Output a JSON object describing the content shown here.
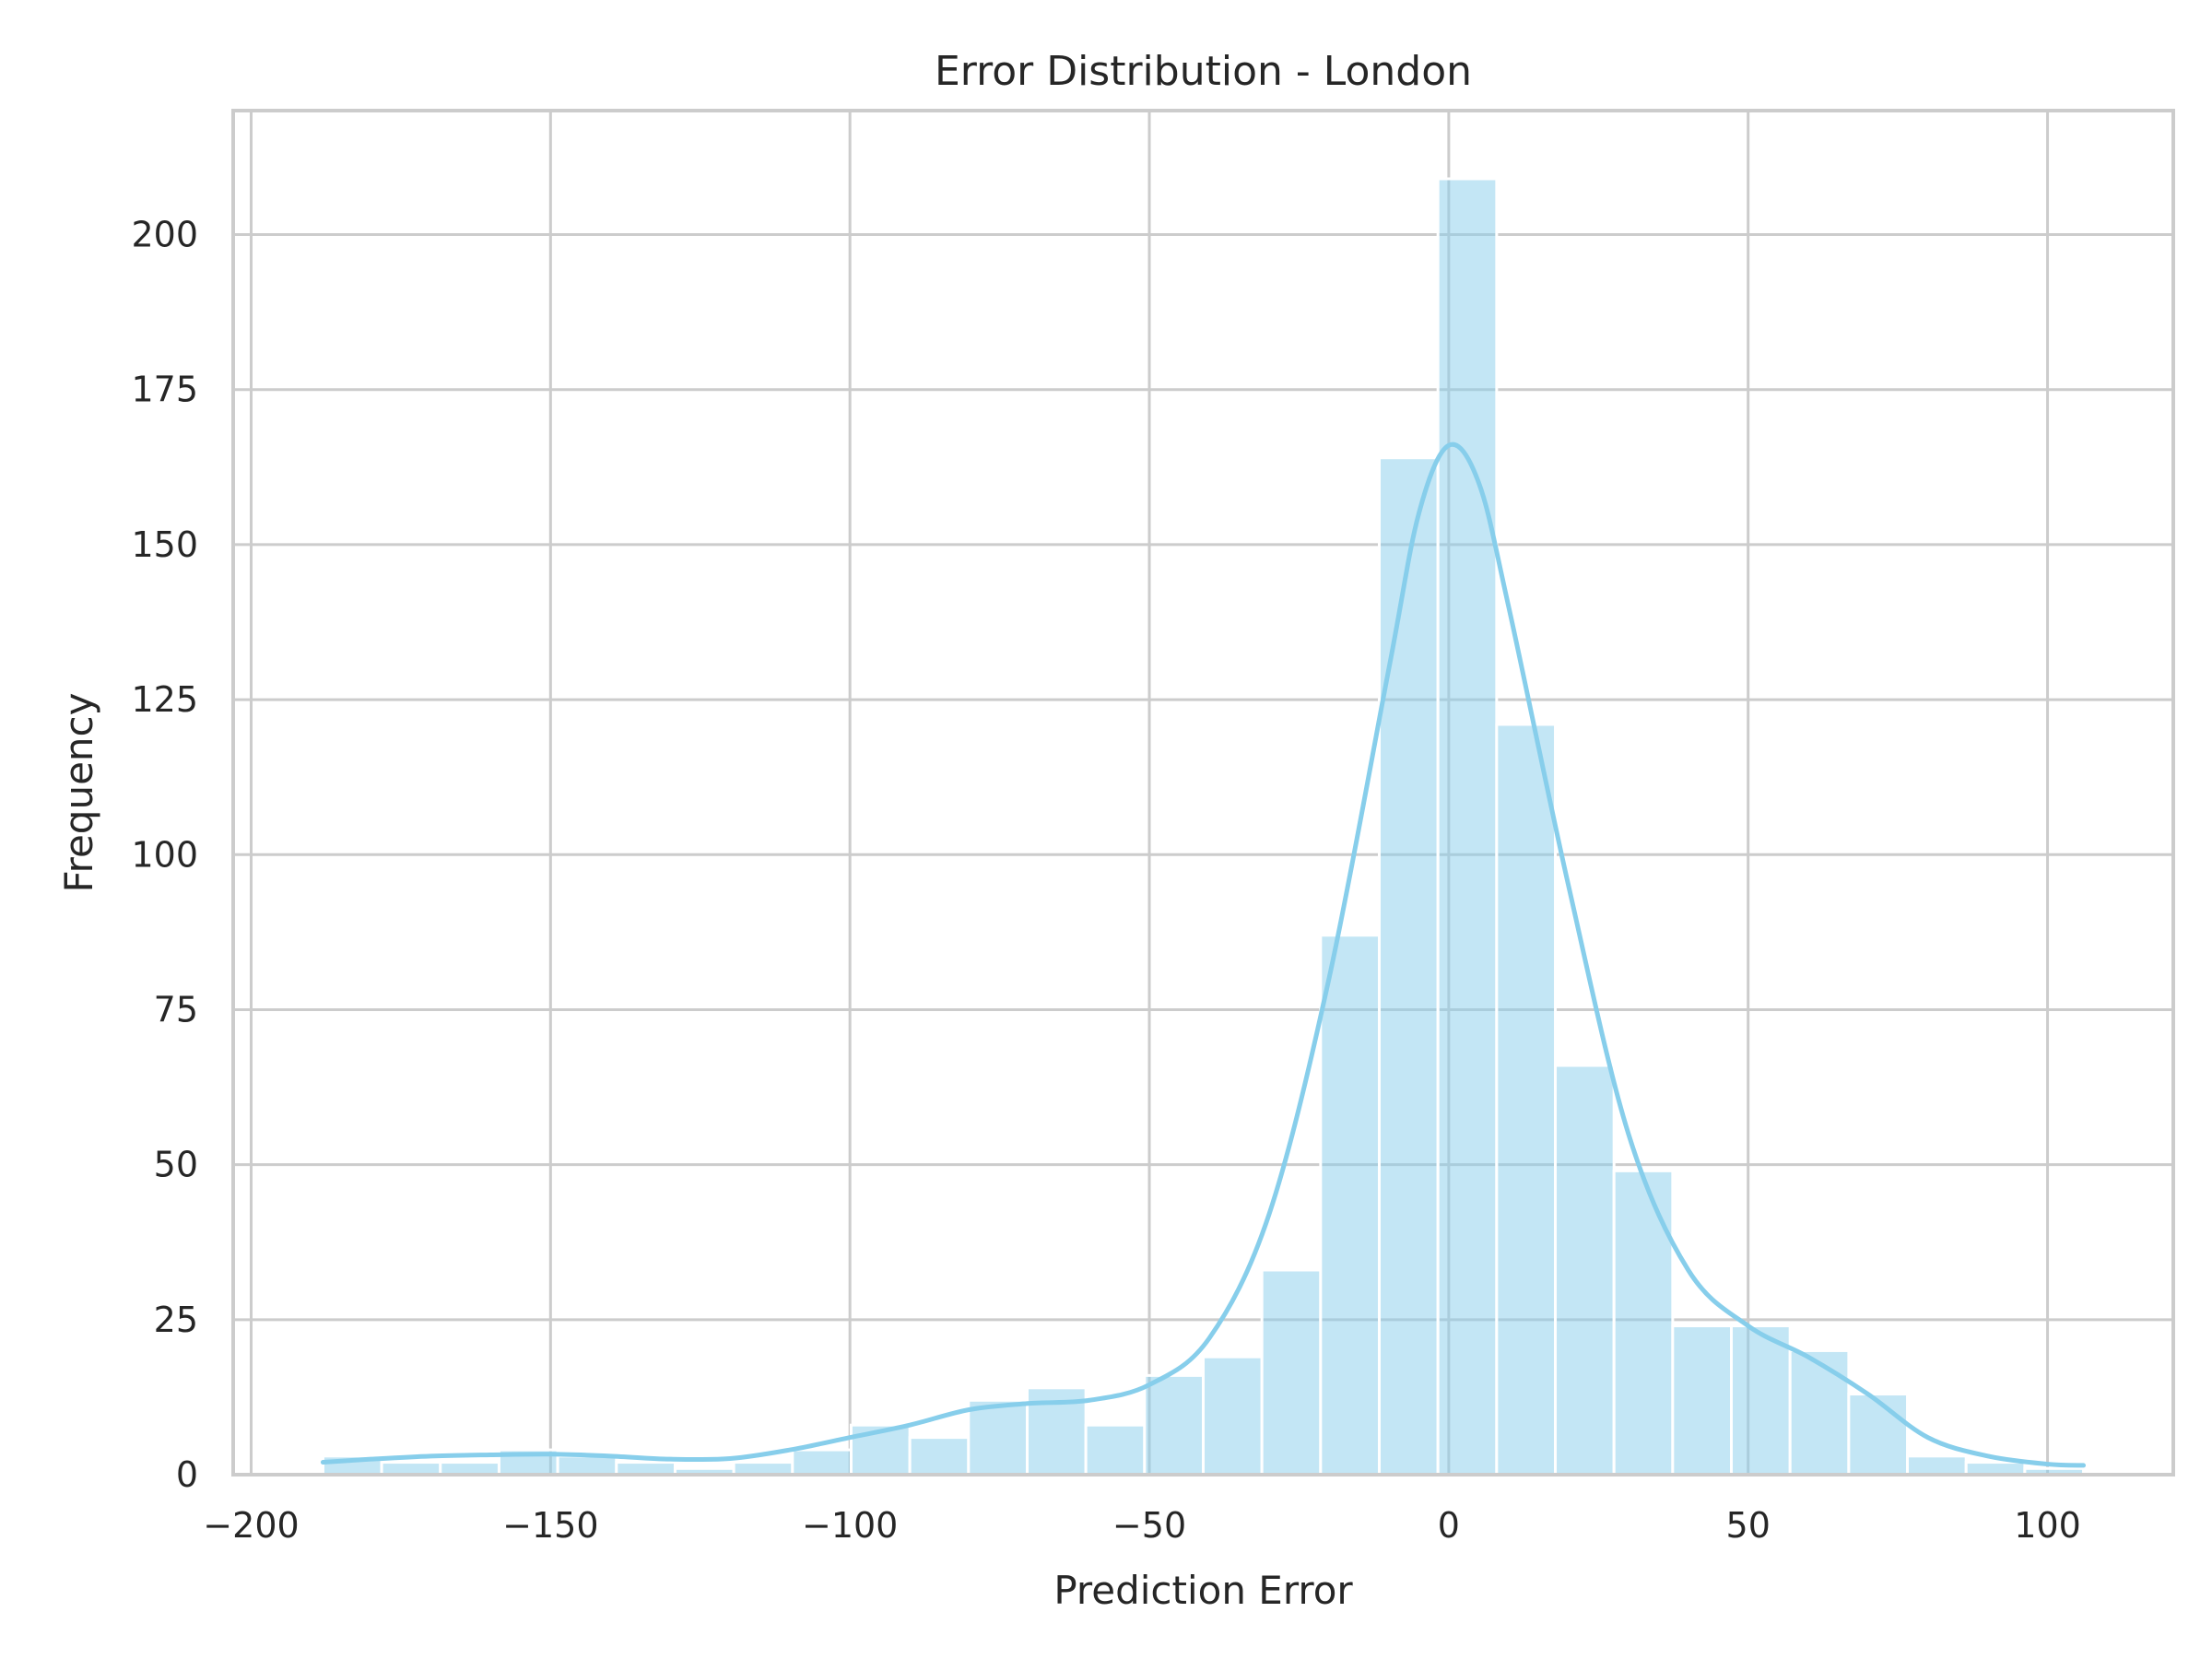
{
  "chart_data": {
    "type": "bar",
    "title": "Error Distribution - London",
    "xlabel": "Prediction Error",
    "ylabel": "Frequency",
    "xlim": [
      -203,
      121
    ],
    "ylim": [
      0,
      220
    ],
    "xticks": [
      -200,
      -150,
      -100,
      -50,
      0,
      50,
      100
    ],
    "xtick_labels": [
      "−200",
      "−150",
      "−100",
      "−50",
      "0",
      "50",
      "100"
    ],
    "yticks": [
      0,
      25,
      50,
      75,
      100,
      125,
      150,
      175,
      200
    ],
    "ytick_labels": [
      "0",
      "25",
      "50",
      "75",
      "100",
      "125",
      "150",
      "175",
      "200"
    ],
    "grid": true,
    "bin_edges": [
      -188.0,
      -178.2,
      -168.4,
      -158.6,
      -148.8,
      -139.0,
      -129.2,
      -119.4,
      -109.6,
      -99.8,
      -90.0,
      -80.2,
      -70.4,
      -60.6,
      -50.8,
      -41.0,
      -31.2,
      -21.4,
      -11.6,
      -1.8,
      8.0,
      17.8,
      27.6,
      37.4,
      47.2,
      57.0,
      66.8,
      76.6,
      86.4,
      96.2,
      106.0
    ],
    "values": [
      3,
      2,
      2,
      4,
      3,
      2,
      1,
      2,
      4,
      8,
      6,
      12,
      14,
      8,
      16,
      19,
      33,
      87,
      164,
      209,
      121,
      66,
      49,
      24,
      24,
      20,
      13,
      3,
      2,
      1
    ],
    "kde": {
      "x": [
        -188,
        -180,
        -170,
        -160,
        -150,
        -140,
        -130,
        -120,
        -110,
        -100,
        -90,
        -80,
        -70,
        -60,
        -50,
        -40,
        -30,
        -20,
        -10,
        -5,
        0,
        5,
        10,
        20,
        30,
        40,
        50,
        60,
        70,
        80,
        90,
        100,
        106
      ],
      "y": [
        2,
        2.5,
        3,
        3.2,
        3.3,
        3,
        2.5,
        2.6,
        4,
        6,
        8,
        10.5,
        11.5,
        12,
        14.5,
        22,
        42,
        80,
        130,
        155,
        166,
        160,
        140,
        95,
        55,
        33,
        24,
        19,
        13,
        6,
        3,
        1.7,
        1.5
      ]
    },
    "colors": {
      "bar_fill": "#87ceeb",
      "bar_fill_opacity": "0.5",
      "kde_line": "#87ceeb",
      "grid": "#cccccc",
      "axes_edge": "#cccccc",
      "text": "#262626"
    }
  }
}
